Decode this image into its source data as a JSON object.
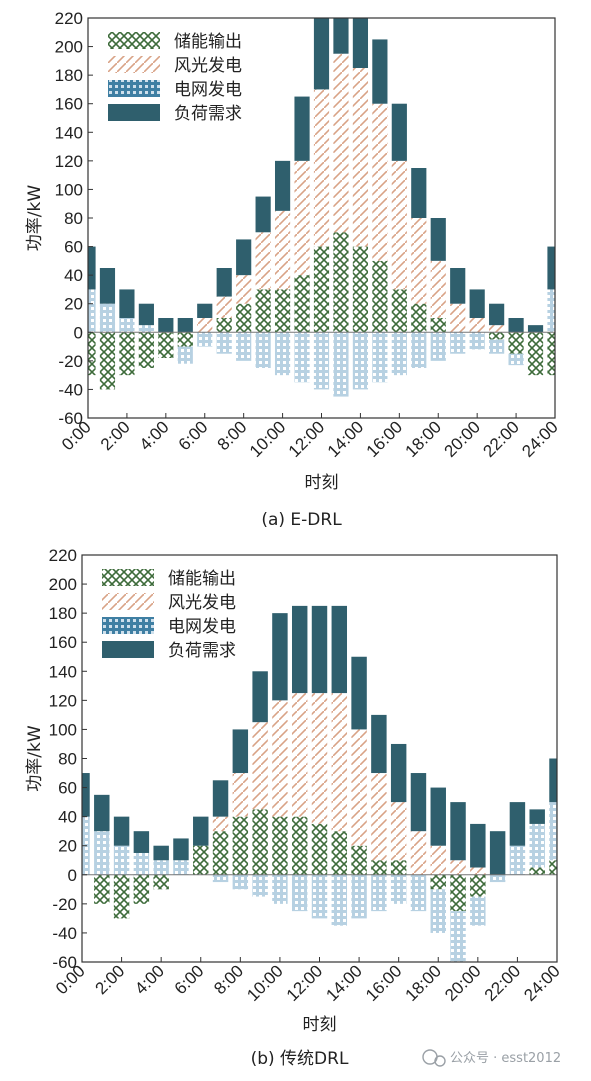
{
  "colors": {
    "storage": "#3d6b3a",
    "storage_bg": "#ffffff",
    "renewable": "#d9a286",
    "grid_dark": "#3f7fa3",
    "grid_light": "#b7d1e2",
    "load": "#2f5f6d",
    "axis": "#333333"
  },
  "watermark": "公众号 · esst2012",
  "chart_data": [
    {
      "type": "bar",
      "caption": "(a) E-DRL",
      "xlabel": "时刻",
      "ylabel": "功率/kW",
      "ylim": [
        -60,
        220
      ],
      "yticks": [
        -60,
        -40,
        -20,
        0,
        20,
        40,
        60,
        80,
        100,
        120,
        140,
        160,
        180,
        200,
        220
      ],
      "xticks": [
        "0:00",
        "2:00",
        "4:00",
        "6:00",
        "8:00",
        "10:00",
        "12:00",
        "14:00",
        "16:00",
        "18:00",
        "20:00",
        "22:00",
        "24:00"
      ],
      "hours": [
        0,
        1,
        2,
        3,
        4,
        5,
        6,
        7,
        8,
        9,
        10,
        11,
        12,
        13,
        14,
        15,
        16,
        17,
        18,
        19,
        20,
        21,
        22,
        23,
        24
      ],
      "legend": [
        "储能输出",
        "风光发电",
        "电网发电",
        "负荷需求"
      ],
      "series": [
        {
          "name": "储能输出",
          "values": [
            -30,
            -40,
            -30,
            -25,
            -18,
            -10,
            0,
            10,
            20,
            30,
            30,
            40,
            60,
            70,
            60,
            50,
            30,
            20,
            10,
            0,
            0,
            -5,
            -15,
            -30,
            -30
          ]
        },
        {
          "name": "风光发电",
          "values": [
            0,
            0,
            0,
            0,
            0,
            0,
            10,
            15,
            20,
            40,
            55,
            80,
            110,
            125,
            125,
            110,
            90,
            60,
            40,
            20,
            10,
            5,
            0,
            0,
            0
          ]
        },
        {
          "name": "电网发电",
          "values": [
            30,
            20,
            10,
            5,
            0,
            -12,
            -10,
            -15,
            -20,
            -25,
            -30,
            -35,
            -40,
            -45,
            -40,
            -35,
            -30,
            -25,
            -20,
            -15,
            -12,
            -10,
            -8,
            0,
            30
          ]
        },
        {
          "name": "负荷需求",
          "values": [
            30,
            25,
            20,
            15,
            10,
            10,
            10,
            20,
            25,
            25,
            35,
            45,
            50,
            55,
            50,
            45,
            40,
            35,
            30,
            25,
            20,
            15,
            10,
            5,
            30
          ]
        }
      ]
    },
    {
      "type": "bar",
      "caption": "(b) 传统DRL",
      "xlabel": "时刻",
      "ylabel": "功率/kW",
      "ylim": [
        -60,
        220
      ],
      "yticks": [
        -60,
        -40,
        -20,
        0,
        20,
        40,
        60,
        80,
        100,
        120,
        140,
        160,
        180,
        200,
        220
      ],
      "xticks": [
        "0:00",
        "2:00",
        "4:00",
        "6:00",
        "8:00",
        "10:00",
        "12:00",
        "14:00",
        "16:00",
        "18:00",
        "20:00",
        "22:00",
        "24:00"
      ],
      "hours": [
        0,
        1,
        2,
        3,
        4,
        5,
        6,
        7,
        8,
        9,
        10,
        11,
        12,
        13,
        14,
        15,
        16,
        17,
        18,
        19,
        20,
        21,
        22,
        23,
        24
      ],
      "legend": [
        "储能输出",
        "风光发电",
        "电网发电",
        "负荷需求"
      ],
      "series": [
        {
          "name": "储能输出",
          "values": [
            0,
            -20,
            -30,
            -20,
            -10,
            0,
            20,
            30,
            40,
            45,
            40,
            40,
            35,
            30,
            20,
            10,
            10,
            0,
            -10,
            -25,
            -15,
            0,
            0,
            5,
            10
          ]
        },
        {
          "name": "风光发电",
          "values": [
            0,
            0,
            0,
            0,
            0,
            0,
            0,
            10,
            30,
            60,
            80,
            85,
            90,
            95,
            80,
            60,
            40,
            30,
            20,
            10,
            5,
            0,
            0,
            0,
            0
          ]
        },
        {
          "name": "电网发电",
          "values": [
            40,
            30,
            20,
            15,
            10,
            10,
            0,
            -5,
            -10,
            -15,
            -20,
            -25,
            -30,
            -35,
            -30,
            -25,
            -20,
            -25,
            -30,
            -40,
            -20,
            -5,
            20,
            30,
            40
          ]
        },
        {
          "name": "负荷需求",
          "values": [
            30,
            25,
            20,
            15,
            10,
            15,
            20,
            25,
            30,
            35,
            60,
            60,
            60,
            60,
            50,
            40,
            40,
            40,
            40,
            40,
            30,
            30,
            30,
            10,
            30
          ]
        }
      ]
    }
  ]
}
